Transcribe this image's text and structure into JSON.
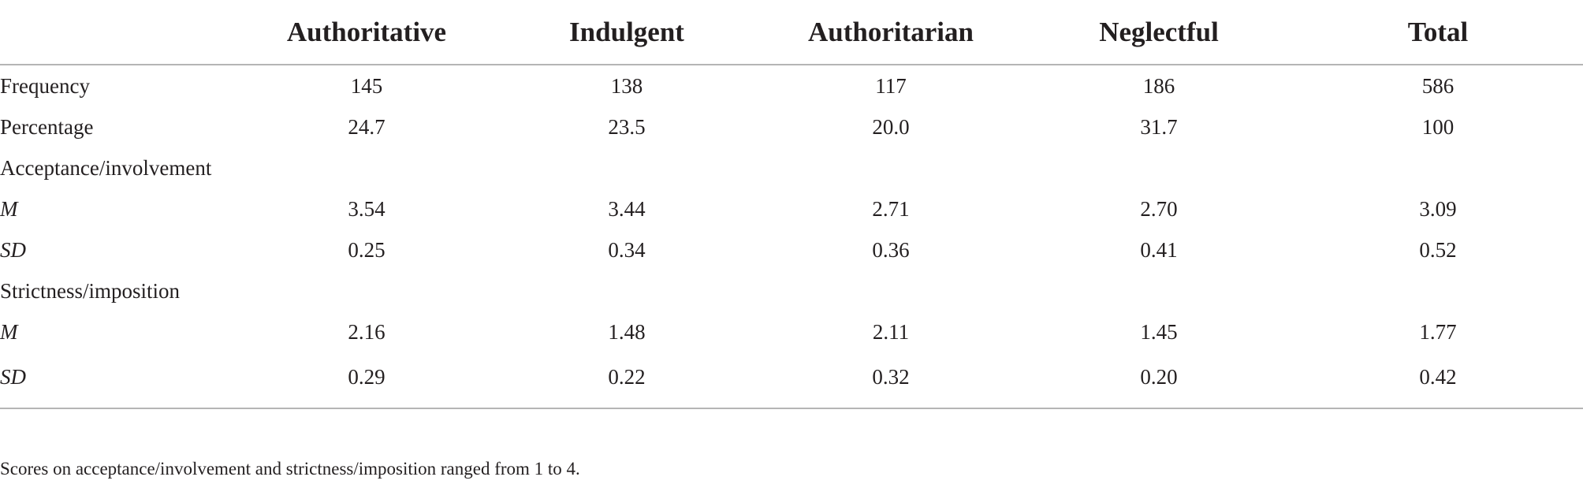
{
  "table": {
    "headers": [
      "",
      "Authoritative",
      "Indulgent",
      "Authoritarian",
      "Neglectful",
      "Total"
    ],
    "rows": [
      {
        "label": "Frequency",
        "italic": false,
        "values": [
          "145",
          "138",
          "117",
          "186",
          "586"
        ]
      },
      {
        "label": "Percentage",
        "italic": false,
        "values": [
          "24.7",
          "23.5",
          "20.0",
          "31.7",
          "100"
        ]
      },
      {
        "label": "Acceptance/involvement",
        "italic": false,
        "values": [
          "",
          "",
          "",
          "",
          ""
        ]
      },
      {
        "label": "M",
        "italic": true,
        "values": [
          "3.54",
          "3.44",
          "2.71",
          "2.70",
          "3.09"
        ]
      },
      {
        "label": "SD",
        "italic": true,
        "values": [
          "0.25",
          "0.34",
          "0.36",
          "0.41",
          "0.52"
        ]
      },
      {
        "label": "Strictness/imposition",
        "italic": false,
        "values": [
          "",
          "",
          "",
          "",
          ""
        ]
      },
      {
        "label": "M",
        "italic": true,
        "values": [
          "2.16",
          "1.48",
          "2.11",
          "1.45",
          "1.77"
        ]
      },
      {
        "label": "SD",
        "italic": true,
        "values": [
          "0.29",
          "0.22",
          "0.32",
          "0.20",
          "0.42"
        ]
      }
    ]
  },
  "footnote": "Scores on acceptance/involvement and strictness/imposition ranged from 1 to 4."
}
